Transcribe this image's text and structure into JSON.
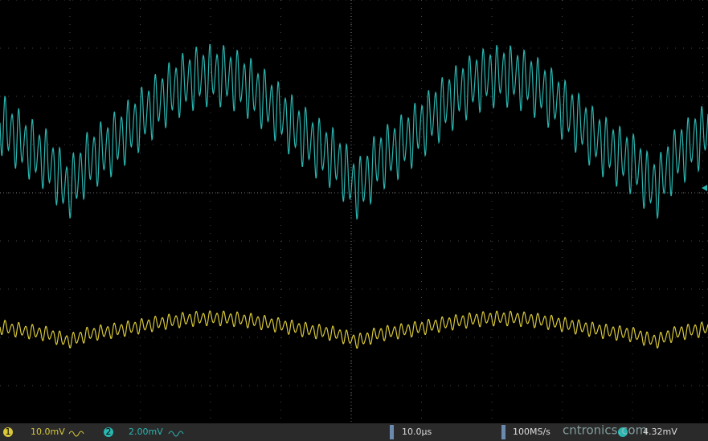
{
  "status_bar": {
    "ch1_label": "1",
    "ch1_scale": "10.0mV",
    "ch2_label": "2",
    "ch2_scale": "2.00mV",
    "timebase": "10.0µs",
    "sample_rate": "100MS/s",
    "trigger_level": "4.32mV"
  },
  "watermark": "cntronics.com"
}
